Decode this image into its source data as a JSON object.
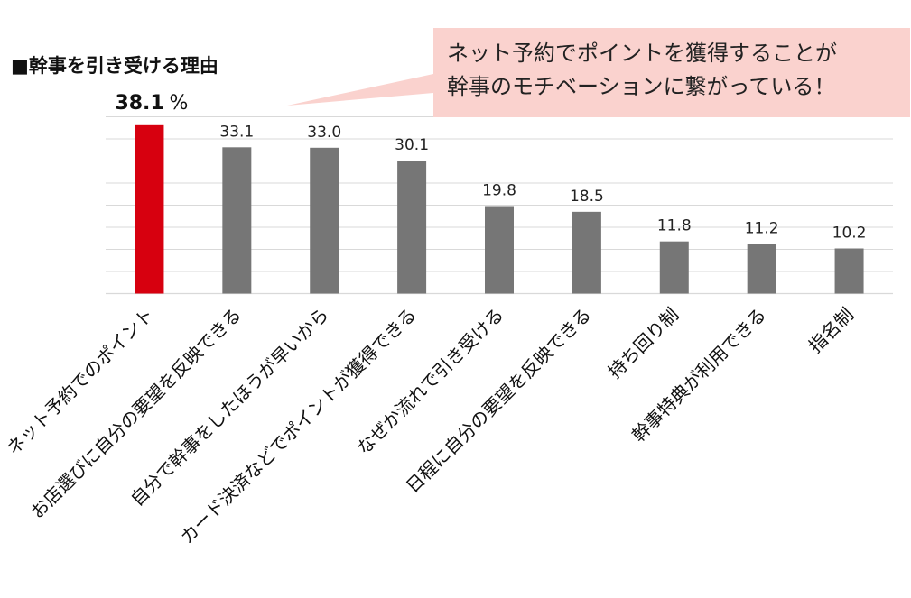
{
  "chart_data": {
    "type": "bar",
    "title": "■幹事を引き受ける理由",
    "categories": [
      "ネット予約でのポイント",
      "お店選びに自分の要望を反映できる",
      "自分で幹事をしたほうが早いから",
      "カード決済などでポイントが獲得できる",
      "なぜか流れで引き受ける",
      "日程に自分の要望を反映できる",
      "持ち回り制",
      "幹事特典が利用できる",
      "指名制"
    ],
    "values": [
      38.1,
      33.1,
      33.0,
      30.1,
      19.8,
      18.5,
      11.8,
      11.2,
      10.2
    ],
    "value_labels": [
      "38.1",
      "33.1",
      "33.0",
      "30.1",
      "19.8",
      "18.5",
      "11.8",
      "11.2",
      "10.2"
    ],
    "unit": "%",
    "ylim": [
      0,
      40
    ],
    "grid": true,
    "colors": {
      "highlight": "#d7000f",
      "bar": "#767676",
      "callout_fill": "#fad2ce",
      "gridline": "#d9d9d9"
    },
    "annotation": {
      "lines": [
        "ネット予約でポイントを獲得することが",
        "幹事のモチベーションに繋がっている！"
      ]
    }
  }
}
